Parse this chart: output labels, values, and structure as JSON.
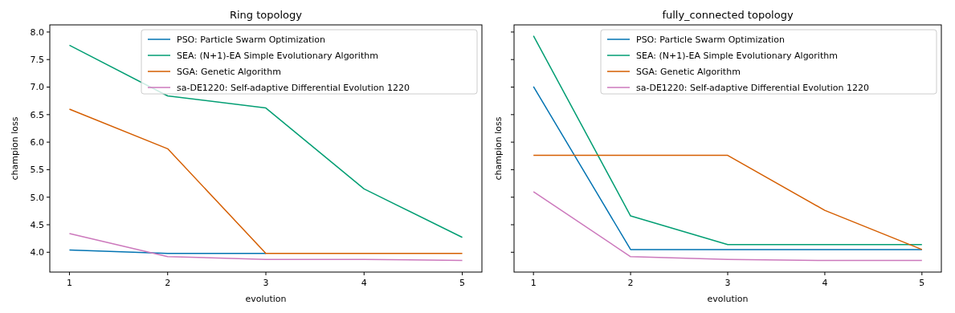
{
  "chart_data": [
    {
      "type": "line",
      "title": "Ring topology",
      "xlabel": "evolution",
      "ylabel": "champion loss",
      "x": [
        1,
        2,
        3,
        4,
        5
      ],
      "xlim": [
        0.8,
        5.2
      ],
      "xticks": [
        1,
        2,
        3,
        4,
        5
      ],
      "ylim": [
        3.64,
        8.13
      ],
      "yticks": [
        {
          "value": 4,
          "label": "4.0"
        },
        4.5,
        {
          "value": 5,
          "label": "5.0"
        },
        5.5,
        {
          "value": 6,
          "label": "6.0"
        },
        6.5,
        {
          "value": 7,
          "label": "7.0"
        },
        7.5,
        {
          "value": 8,
          "label": "8.0"
        }
      ],
      "legend": "top right",
      "grid": false,
      "series": [
        {
          "name": "PSO: Particle Swarm Optimization",
          "color": "#0173b2",
          "values": [
            4.04,
            3.98,
            3.98,
            null,
            null
          ]
        },
        {
          "name": "SEA: (N+1)-EA Simple Evolutionary Algorithm",
          "color": "#029e73",
          "values": [
            7.76,
            6.84,
            6.62,
            5.15,
            4.27
          ]
        },
        {
          "name": "SGA: Genetic Algorithm",
          "color": "#d55e00",
          "values": [
            6.6,
            5.88,
            3.98,
            3.98,
            3.98
          ]
        },
        {
          "name": "sa-DE1220: Self-adaptive Differential Evolution 1220",
          "color": "#cc78bc",
          "values": [
            4.34,
            3.92,
            3.87,
            3.87,
            3.85
          ]
        }
      ]
    },
    {
      "type": "line",
      "title": "fully_connected topology",
      "xlabel": "evolution",
      "ylabel": "champion loss",
      "x": [
        1,
        2,
        3,
        4,
        5
      ],
      "xlim": [
        0.8,
        5.2
      ],
      "xticks": [
        1,
        2,
        3,
        4,
        5
      ],
      "ylim": [
        3.64,
        8.13
      ],
      "yticks": [
        4,
        4.5,
        5,
        5.5,
        6,
        6.5,
        7,
        7.5,
        8
      ],
      "tick_labels": "x",
      "legend": "top right",
      "grid": false,
      "series": [
        {
          "name": "PSO: Particle Swarm Optimization",
          "color": "#0173b2",
          "values": [
            7.01,
            4.05,
            4.05,
            4.05,
            4.05
          ]
        },
        {
          "name": "SEA: (N+1)-EA Simple Evolutionary Algorithm",
          "color": "#029e73",
          "values": [
            7.93,
            4.66,
            4.14,
            4.14,
            4.14
          ]
        },
        {
          "name": "SGA: Genetic Algorithm",
          "color": "#d55e00",
          "values": [
            5.76,
            5.76,
            5.76,
            4.76,
            4.05
          ]
        },
        {
          "name": "sa-DE1220: Self-adaptive Differential Evolution 1220",
          "color": "#cc78bc",
          "values": [
            5.1,
            3.92,
            3.87,
            3.85,
            3.85
          ]
        }
      ]
    }
  ]
}
